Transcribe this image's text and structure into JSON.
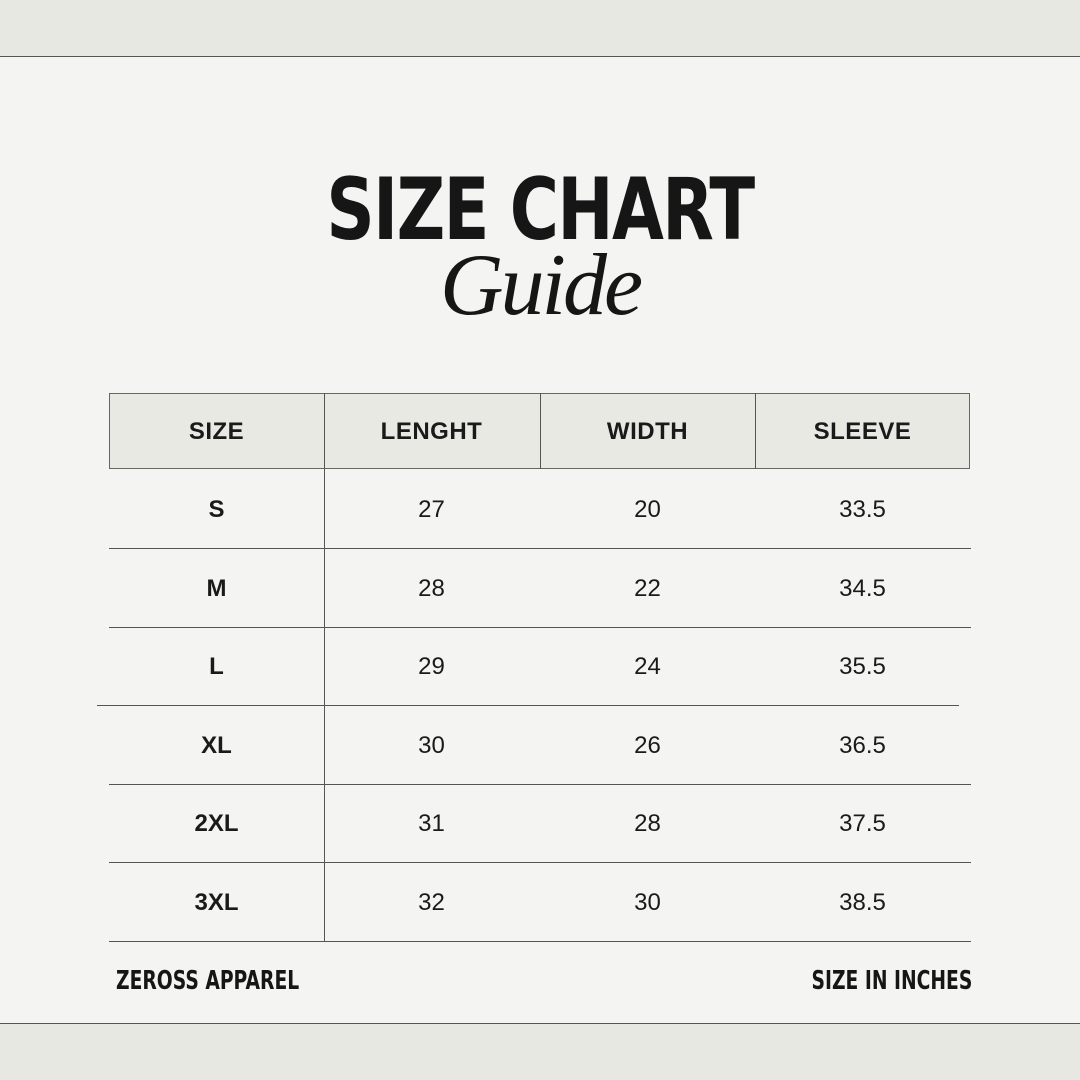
{
  "title": "SIZE CHART",
  "subtitle": "Guide",
  "table": {
    "headers": [
      "SIZE",
      "LENGHT",
      "WIDTH",
      "SLEEVE"
    ],
    "rows": [
      [
        "S",
        "27",
        "20",
        "33.5"
      ],
      [
        "M",
        "28",
        "22",
        "34.5"
      ],
      [
        "L",
        "29",
        "24",
        "35.5"
      ],
      [
        "XL",
        "30",
        "26",
        "36.5"
      ],
      [
        "2XL",
        "31",
        "28",
        "37.5"
      ],
      [
        "3XL",
        "32",
        "30",
        "38.5"
      ]
    ]
  },
  "footer": {
    "brand": "ZEROSS APPAREL",
    "unit_note": "SIZE IN INCHES"
  },
  "colors": {
    "background": "#f4f4f2",
    "header_fill": "#e9e9e4",
    "text": "#1a1a1a"
  }
}
